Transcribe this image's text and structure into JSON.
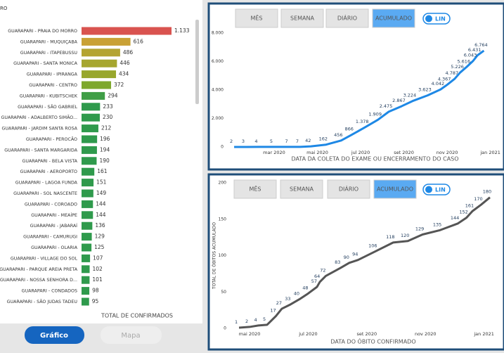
{
  "left_panel_title": "RO",
  "buttons": [
    "Gráfico",
    "Mapa"
  ],
  "panels": [
    {
      "tabs": [
        "MÊS",
        "SEMANA",
        "DIÁRIO",
        "ACUMULADO"
      ],
      "toggle": "LIN"
    },
    {
      "tabs": [
        "MÊS",
        "SEMANA",
        "DIÁRIO",
        "ACUMULADO"
      ],
      "toggle": "LIN"
    }
  ],
  "chart_data": [
    {
      "type": "hbar",
      "x_label": "TOTAL DE CONFIRMADOS",
      "categories": [
        "GUARAPARI - PRAIA DO MORRO",
        "GUARAPARI - MUQUIÇABA",
        "GUARAPARI - ITAPEBUSSU",
        "GUARAPARI - SANTA MONICA",
        "GUARAPARI - IPIRANGA",
        "GUARAPARI - CENTRO",
        "GUARAPARI - KUBITSCHEK",
        "GUARAPARI - SÃO GABRIEL",
        "GUARAPARI - ADALBERTO SIMÃO...",
        "GUARAPARI - JARDIM SANTA ROSA",
        "GUARAPARI - PEROCÃO",
        "GUARAPARI - SANTA MARGARIDA",
        "GUARAPARI - BELA VISTA",
        "GUARAPARI - AEROPORTO",
        "GUARAPARI - LAGOA FUNDA",
        "GUARAPARI - SOL NASCENTE",
        "GUARAPARI - COROADO",
        "GUARAPARI - MEAÍPE",
        "GUARAPARI - JABARAÍ",
        "GUARAPARI - CAMURUGI",
        "GUARAPARI - OLARIA",
        "GUARAPARI - VILLAGE DO SOL",
        "GUARAPARI - PARQUE AREIA PRETA",
        "GUARAPARI - NOSSA SENHORA D...",
        "GUARAPARI - CONDADOS",
        "GUARAPARI - SÃO JUDAS TADEU"
      ],
      "values": [
        1133,
        616,
        486,
        446,
        434,
        372,
        294,
        233,
        230,
        212,
        196,
        194,
        190,
        161,
        151,
        149,
        144,
        144,
        136,
        129,
        125,
        107,
        102,
        101,
        98,
        95
      ],
      "value_labels": [
        "1.133",
        "616",
        "486",
        "446",
        "434",
        "372",
        "294",
        "233",
        "230",
        "212",
        "196",
        "194",
        "190",
        "161",
        "151",
        "149",
        "144",
        "144",
        "136",
        "129",
        "125",
        "107",
        "102",
        "101",
        "98",
        "95"
      ],
      "colors": [
        "#d9534f",
        "#c9a135",
        "#b4a431",
        "#a6a62f",
        "#98a72d",
        "#7ea82d",
        "#3f9e46",
        "#2f9a4c",
        "#2f9a4c",
        "#2f9a4c",
        "#2f9a4c",
        "#2f9a4c",
        "#2f9a4c",
        "#2f9a4c",
        "#2f9a4c",
        "#2f9a4c",
        "#2f9a4c",
        "#2f9a4c",
        "#2f9a4c",
        "#2f9a4c",
        "#2f9a4c",
        "#2f9a4c",
        "#2f9a4c",
        "#2f9a4c",
        "#2f9a4c",
        "#2f9a4c"
      ]
    },
    {
      "type": "line",
      "x_label": "DATA DA COLETA DO EXAME OU ENCERRAMENTO DO CASO",
      "color": "#1e88e5",
      "x": [
        1.15,
        1.7,
        2.3,
        3,
        3.7,
        4.2,
        4.7,
        5.4,
        6.1,
        6.6,
        7.2,
        7.8,
        8.3,
        8.9,
        9.4,
        10.1,
        10.7,
        11,
        11.35,
        11.6,
        11.9,
        12.2,
        12.4,
        12.7
      ],
      "values": [
        2,
        3,
        4,
        5,
        7,
        7,
        42,
        162,
        456,
        866,
        1378,
        1909,
        2475,
        2867,
        3224,
        3623,
        4042,
        4367,
        4787,
        5226,
        5616,
        6043,
        6431,
        6764
      ],
      "value_labels": [
        "2",
        "3",
        "4",
        "5",
        "7",
        "7",
        "42",
        "162",
        "456",
        "866",
        "1.378",
        "1.909",
        "2.475",
        "2.867",
        "3.224",
        "3.623",
        "4.042",
        "4.367",
        "4.787",
        "5.226",
        "5.616",
        "6.043",
        "6.431",
        "6.764"
      ],
      "xlim": [
        1.05,
        13.63
      ],
      "ylim": [
        0,
        8000
      ],
      "yticks": [
        0,
        {
          "value": 2000,
          "label": "2.000"
        },
        {
          "value": 4000,
          "label": "4.000"
        },
        {
          "value": 6000,
          "label": "6.000"
        },
        {
          "value": 8000,
          "label": "8.000"
        }
      ],
      "xticks": [
        {
          "value": 3,
          "label": "mar 2020"
        },
        {
          "value": 5,
          "label": "mai 2020"
        },
        {
          "value": 7,
          "label": "jul 2020"
        },
        {
          "value": 9,
          "label": "set 2020"
        },
        {
          "value": 11,
          "label": "nov 2020"
        },
        {
          "value": 13,
          "label": "jan 2021"
        }
      ]
    },
    {
      "type": "line",
      "x_label": "DATA DO ÓBITO CONFIRMADO",
      "y_label": "TOTAL DE ÓBITOS ACUMULADO",
      "color": "#555555",
      "x": [
        4.64,
        5,
        5.3,
        5.6,
        5.9,
        6.1,
        6.4,
        6.7,
        7,
        7.3,
        7.4,
        7.6,
        8.1,
        8.4,
        8.7,
        9.3,
        9.9,
        10.4,
        10.9,
        11.5,
        12.1,
        12.4,
        12.6,
        12.9,
        13.2
      ],
      "values": [
        1,
        2,
        4,
        5,
        17,
        27,
        33,
        40,
        48,
        57,
        64,
        72,
        83,
        90,
        94,
        106,
        118,
        120,
        129,
        135,
        144,
        152,
        161,
        170,
        180
      ],
      "xlim": [
        4.28,
        13.68
      ],
      "ylim": [
        0,
        200
      ],
      "yticks": [
        0,
        50,
        100,
        150,
        200
      ],
      "xticks": [
        {
          "value": 5,
          "label": "mai 2020"
        },
        {
          "value": 7,
          "label": "jul 2020"
        },
        {
          "value": 9,
          "label": "set 2020"
        },
        {
          "value": 11,
          "label": "nov 2020"
        },
        {
          "value": 13,
          "label": "jan 2021"
        }
      ]
    }
  ]
}
